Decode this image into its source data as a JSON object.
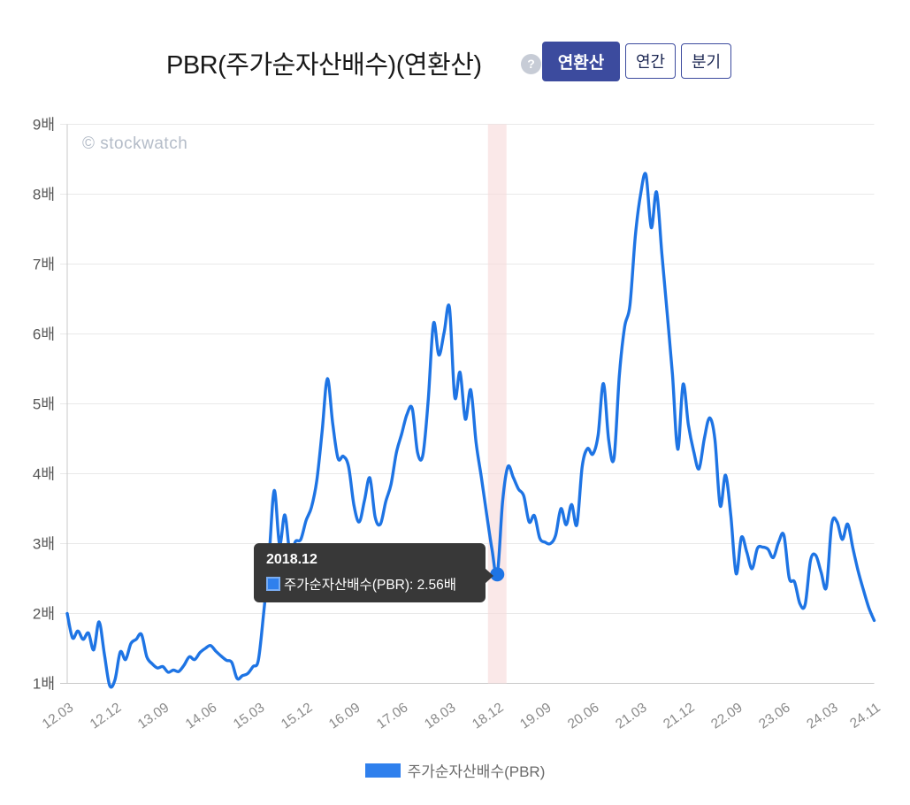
{
  "header": {
    "title": "PBR(주가순자산배수)(연환산)",
    "help_icon": "?",
    "buttons": [
      {
        "label": "연환산",
        "active": true
      },
      {
        "label": "연간",
        "active": false
      },
      {
        "label": "분기",
        "active": false
      }
    ]
  },
  "watermark": "© stockwatch",
  "legend": {
    "label": "주가순자산배수(PBR)"
  },
  "tooltip": {
    "title": "2018.12",
    "text": "주가순자산배수(PBR): 2.56배"
  },
  "colors": {
    "line": "#1e74e4",
    "legend_swatch": "#2f80ed",
    "swatch_border": "#7aadf1",
    "active_button_bg": "#3c4b9e",
    "highlight_band": "#f8dcdc",
    "tooltip_bg": "#383838",
    "grid": "#e9e9e9",
    "axis": "#c9c9c9"
  },
  "chart_data": {
    "type": "line",
    "title": "PBR(주가순자산배수)(연환산)",
    "series_name": "주가순자산배수(PBR)",
    "unit": "배",
    "ylim": [
      1,
      9
    ],
    "grid": true,
    "legend_position": "bottom",
    "y_ticks": [
      "1배",
      "2배",
      "3배",
      "4배",
      "5배",
      "6배",
      "7배",
      "8배",
      "9배"
    ],
    "x_start": "2012.03",
    "x_end": "2024.11",
    "x_frequency": "monthly",
    "x_tick_labels": [
      "12.03",
      "12.12",
      "13.09",
      "14.06",
      "15.03",
      "15.12",
      "16.09",
      "17.06",
      "18.03",
      "18.12",
      "19.09",
      "20.06",
      "21.03",
      "21.12",
      "22.09",
      "23.06",
      "24.03",
      "24.11"
    ],
    "x_tick_indices": [
      0,
      9,
      18,
      27,
      36,
      45,
      54,
      63,
      72,
      81,
      90,
      99,
      108,
      117,
      126,
      135,
      144,
      152
    ],
    "values": [
      2.0,
      1.65,
      1.75,
      1.63,
      1.72,
      1.48,
      1.88,
      1.42,
      0.97,
      1.05,
      1.45,
      1.34,
      1.57,
      1.63,
      1.7,
      1.38,
      1.28,
      1.22,
      1.24,
      1.16,
      1.19,
      1.17,
      1.26,
      1.38,
      1.34,
      1.44,
      1.5,
      1.54,
      1.46,
      1.39,
      1.33,
      1.3,
      1.07,
      1.11,
      1.14,
      1.24,
      1.33,
      2.0,
      2.78,
      3.76,
      2.99,
      3.41,
      2.84,
      3.03,
      3.06,
      3.33,
      3.52,
      3.9,
      4.6,
      5.36,
      4.72,
      4.22,
      4.25,
      4.1,
      3.55,
      3.31,
      3.62,
      3.94,
      3.38,
      3.28,
      3.6,
      3.85,
      4.3,
      4.57,
      4.85,
      4.93,
      4.3,
      4.27,
      5.05,
      6.15,
      5.7,
      6.02,
      6.38,
      5.1,
      5.45,
      4.78,
      5.2,
      4.45,
      3.95,
      3.42,
      2.92,
      2.56,
      3.6,
      4.1,
      3.95,
      3.78,
      3.68,
      3.31,
      3.4,
      3.08,
      3.02,
      3.0,
      3.12,
      3.5,
      3.27,
      3.56,
      3.27,
      4.1,
      4.36,
      4.28,
      4.55,
      5.29,
      4.48,
      4.22,
      5.4,
      6.1,
      6.41,
      7.4,
      8.0,
      8.28,
      7.52,
      8.03,
      7.15,
      6.3,
      5.42,
      4.35,
      5.28,
      4.7,
      4.32,
      4.07,
      4.5,
      4.8,
      4.49,
      3.54,
      3.98,
      3.4,
      2.57,
      3.09,
      2.88,
      2.64,
      2.93,
      2.95,
      2.92,
      2.8,
      3.02,
      3.12,
      2.51,
      2.45,
      2.14,
      2.13,
      2.76,
      2.83,
      2.59,
      2.38,
      3.28,
      3.31,
      3.06,
      3.28,
      2.93,
      2.6,
      2.33,
      2.08,
      1.9
    ],
    "highlight": {
      "index": 81,
      "x": "2018.12",
      "value": 2.56
    }
  }
}
